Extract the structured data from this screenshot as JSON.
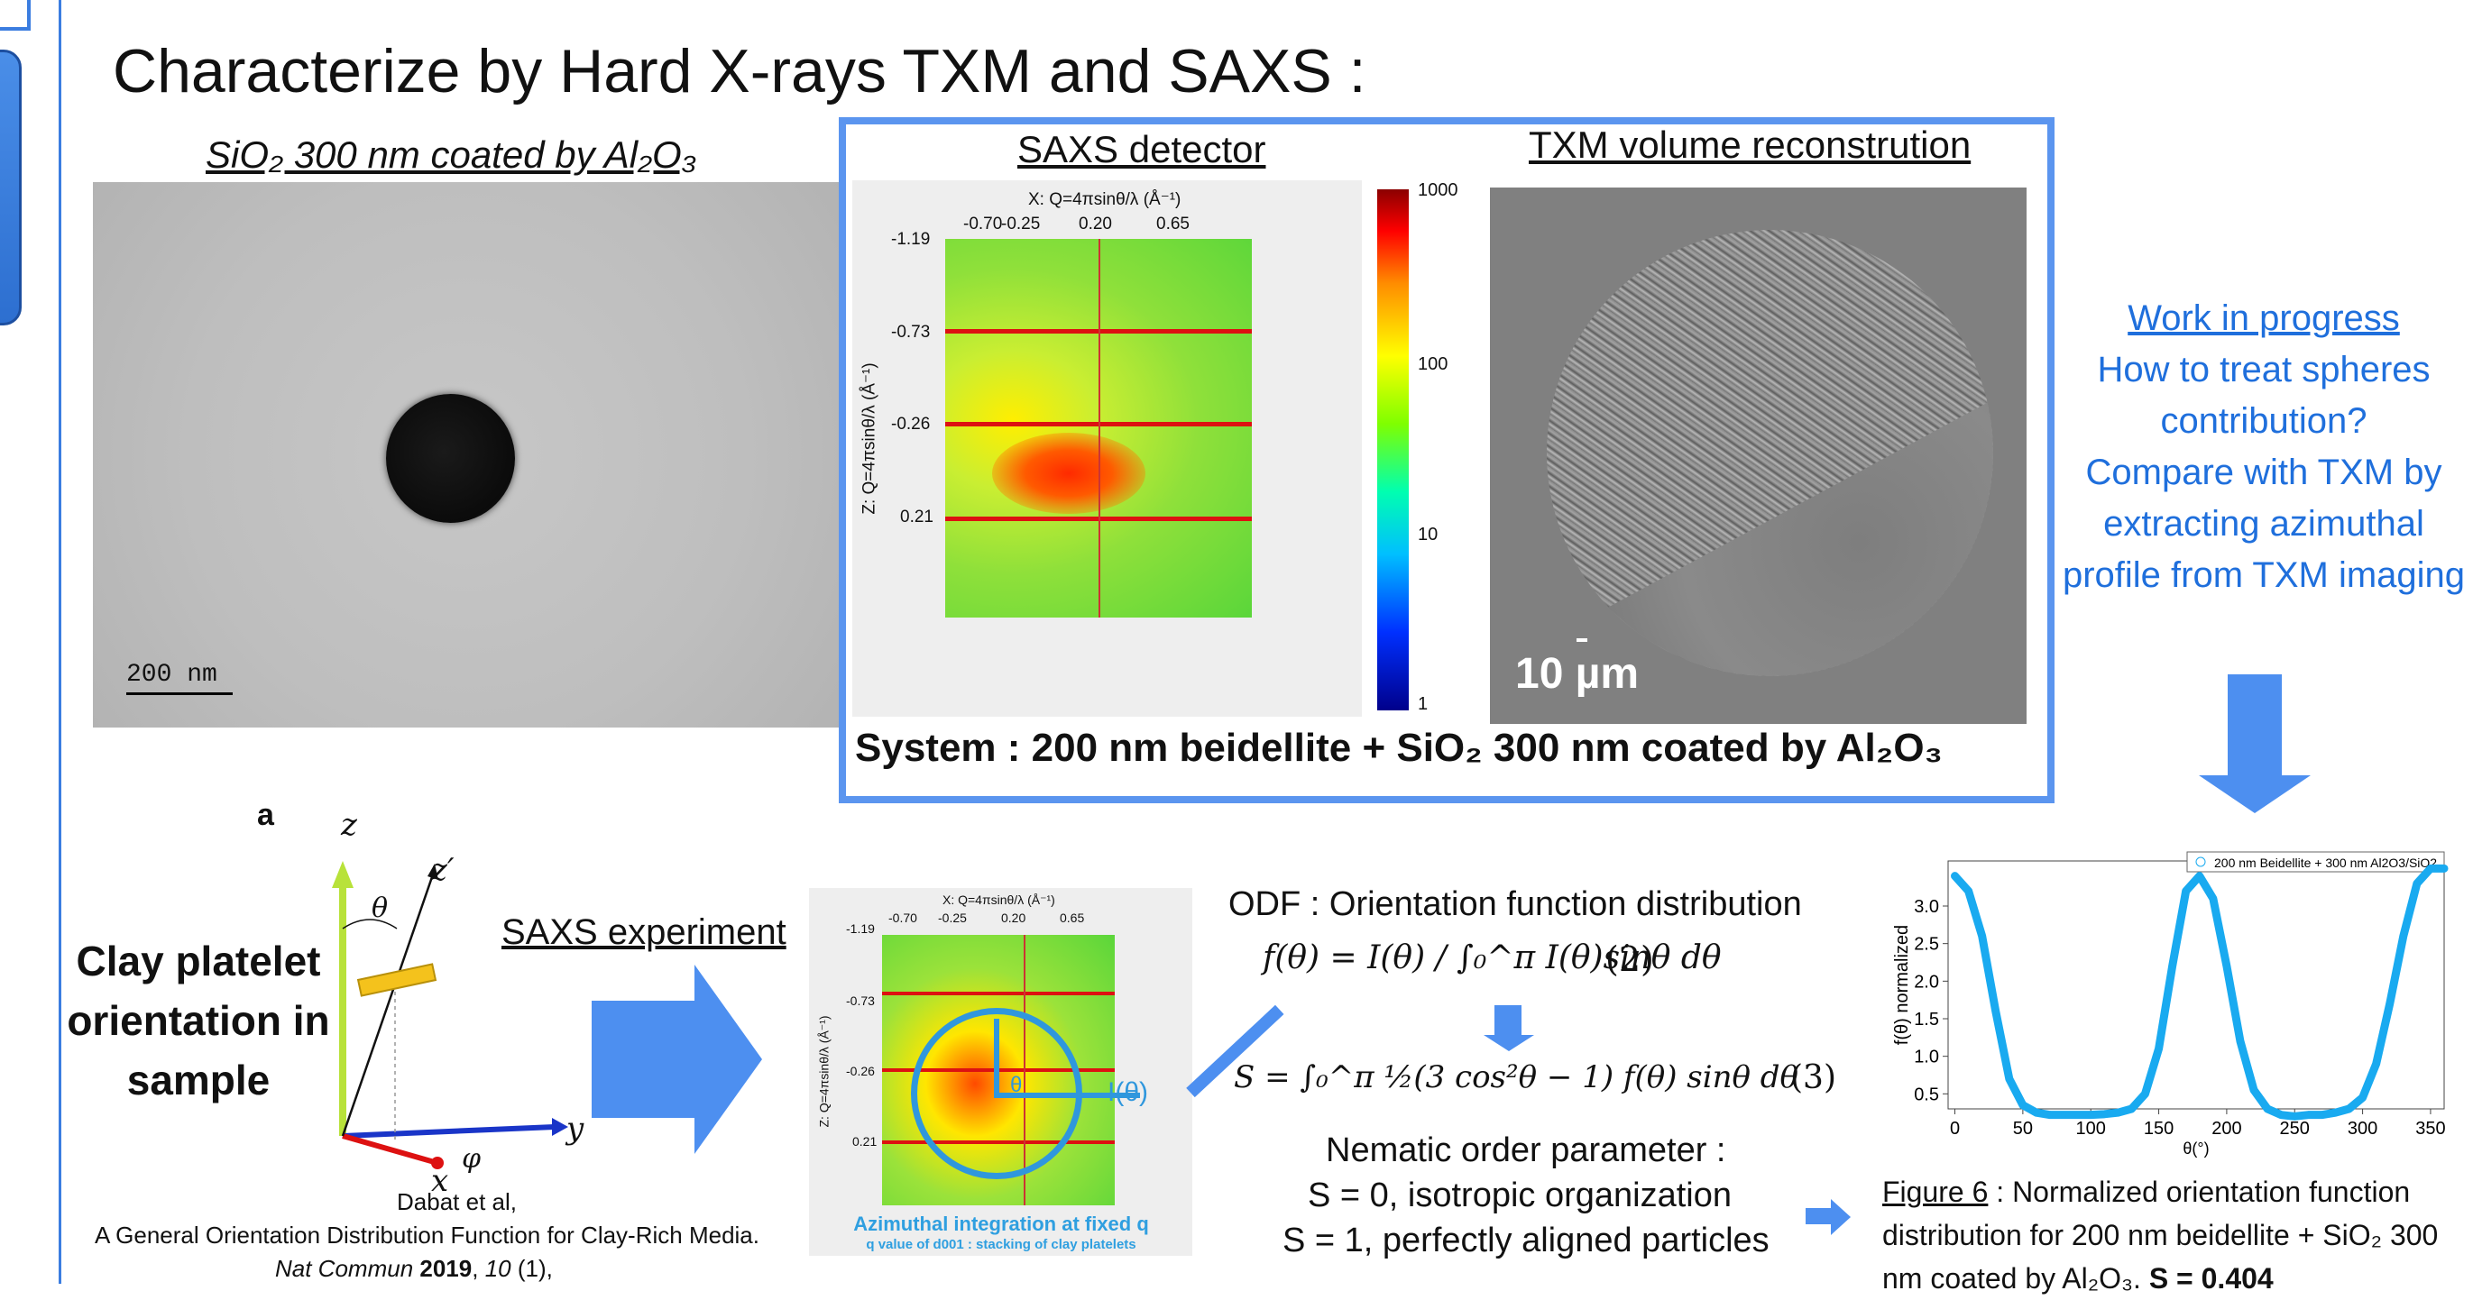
{
  "title": "Characterize by Hard X-rays TXM and SAXS :",
  "tem": {
    "label": "SiO₂ 300 nm coated by Al₂O₃",
    "scalebar": "200 nm"
  },
  "saxs": {
    "label": "SAXS detector",
    "x_axis": "X: Q=4πsinθ/λ (Å⁻¹)",
    "y_axis": "Z: Q=4πsinθ/λ (Å⁻¹)",
    "x_ticks": [
      "-0.70",
      "-0.25",
      "0.20",
      "0.65"
    ],
    "y_ticks": [
      "-1.19",
      "-0.73",
      "-0.26",
      "0.21"
    ],
    "colorbar": [
      "1000",
      "100",
      "10",
      "1"
    ]
  },
  "txm": {
    "label": "TXM volume reconstrution",
    "scale": "10 µm"
  },
  "system": "System : 200 nm beidellite + SiO₂ 300 nm coated by Al₂O₃",
  "wip": {
    "title": "Work in progress",
    "lines": [
      "How to treat spheres contribution?",
      "Compare with TXM by extracting azimuthal profile from TXM imaging"
    ]
  },
  "diagram": {
    "panel": "a",
    "z": "z",
    "zp": "z′",
    "theta": "θ",
    "y": "y",
    "x": "x",
    "phi": "φ",
    "clay_label": "Clay platelet orientation in sample"
  },
  "saxs_exp": "SAXS experiment",
  "small_saxs": {
    "x_axis": "X: Q=4πsinθ/λ (Å⁻¹)",
    "y_axis": "Z: Q=4πsinθ/λ (Å⁻¹)",
    "x_ticks": [
      "-0.70",
      "-0.25",
      "0.20",
      "0.65"
    ],
    "y_ticks": [
      "-1.19",
      "-0.73",
      "-0.26",
      "0.21"
    ],
    "theta": "θ",
    "itheta": "I(θ)",
    "caption1": "Azimuthal integration at fixed q",
    "caption2": "q value of d001 : stacking of clay platelets"
  },
  "odf": {
    "title": "ODF : Orientation function distribution",
    "formula2": "f(θ) = I(θ) / ∫₀^π I(θ)sinθ dθ",
    "eq2": "(2)",
    "formula3": "S = ∫₀^π ½(3 cos²θ − 1) f(θ) sinθ dθ",
    "eq3": "(3)",
    "nematic_title": "Nematic order parameter :",
    "s0": "S = 0, isotropic organization",
    "s1": "S = 1, perfectly aligned particles"
  },
  "citation": {
    "authors": "Dabat et al,",
    "title": "A General Orientation Distribution Function for Clay-Rich Media.",
    "journal": "Nat Commun",
    "year": "2019",
    "volume": "10",
    "issue": "(1),"
  },
  "chart_data": {
    "type": "line",
    "title": "",
    "xlabel": "θ(°)",
    "ylabel": "f(θ) normalized",
    "xlim": [
      -5,
      360
    ],
    "ylim": [
      0.3,
      3.6
    ],
    "x_ticks": [
      "0",
      "50",
      "100",
      "150",
      "200",
      "250",
      "300",
      "350"
    ],
    "y_ticks": [
      "0.5",
      "1.0",
      "1.5",
      "2.0",
      "2.5",
      "3.0"
    ],
    "legend": "top",
    "series": [
      {
        "name": "200 nm Beidellite + 300 nm Al2O3/SiO2",
        "color": "#19aaf0",
        "x": [
          0,
          10,
          20,
          30,
          40,
          50,
          60,
          70,
          80,
          90,
          100,
          110,
          120,
          130,
          140,
          150,
          160,
          170,
          180,
          190,
          200,
          210,
          220,
          230,
          240,
          250,
          260,
          270,
          280,
          290,
          300,
          310,
          320,
          330,
          340,
          350,
          360
        ],
        "y": [
          3.4,
          3.2,
          2.6,
          1.6,
          0.7,
          0.35,
          0.25,
          0.22,
          0.22,
          0.22,
          0.22,
          0.23,
          0.25,
          0.3,
          0.5,
          1.1,
          2.2,
          3.2,
          3.4,
          3.1,
          2.2,
          1.2,
          0.55,
          0.3,
          0.22,
          0.2,
          0.22,
          0.22,
          0.25,
          0.3,
          0.45,
          0.9,
          1.7,
          2.6,
          3.3,
          3.5,
          3.5
        ]
      }
    ]
  },
  "figure": {
    "label": "Figure 6",
    "caption": " : Normalized orientation function distribution for 200 nm beidellite + SiO₂ 300 nm coated by Al₂O₃. ",
    "s_value": "S = 0.404"
  }
}
